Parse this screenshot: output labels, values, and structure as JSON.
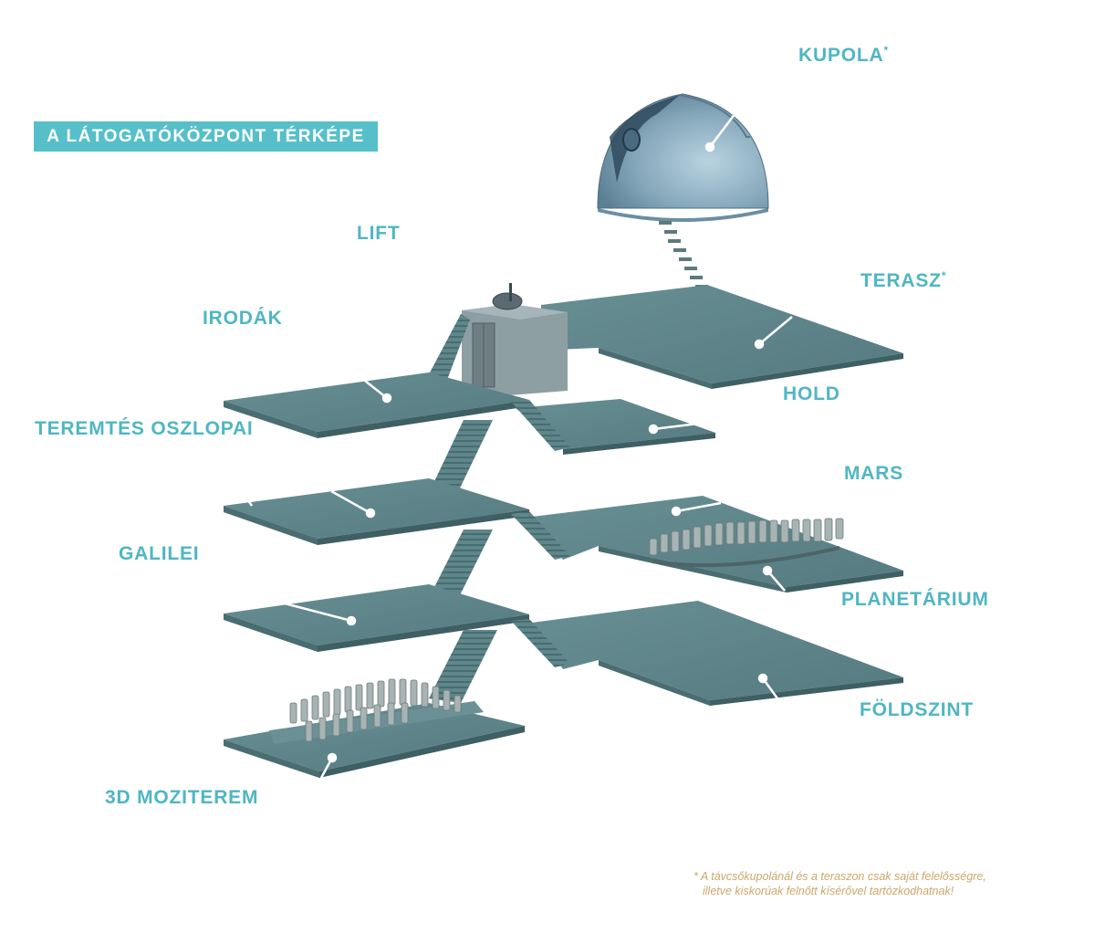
{
  "title": "A LÁTOGATÓKÖZPONT TÉRKÉPE",
  "labels": {
    "kupola": "KUPOLA",
    "lift": "LIFT",
    "terasz": "TERASZ",
    "irodak": "IRODÁK",
    "hold": "HOLD",
    "teremtes": "TEREMTÉS OSZLOPAI",
    "mars": "MARS",
    "galilei": "GALILEI",
    "planetarium": "PLANETÁRIUM",
    "foldszint": "FÖLDSZINT",
    "mozi": "3D MOZITEREM",
    "asterisk": "*"
  },
  "footnote": {
    "line1": "* A távcsőkupolánál és a teraszon csak saját felelősségre,",
    "line2": "illetve kiskorúak felnőtt kísérővel tartózkodhatnak!"
  },
  "colors": {
    "accent": "#56bfca",
    "label": "#4fb6c3",
    "floor_top": "#5c8489",
    "floor_side": "#3e5f63",
    "dome": "#8fb0c2",
    "footnote": "#c9a86a"
  }
}
